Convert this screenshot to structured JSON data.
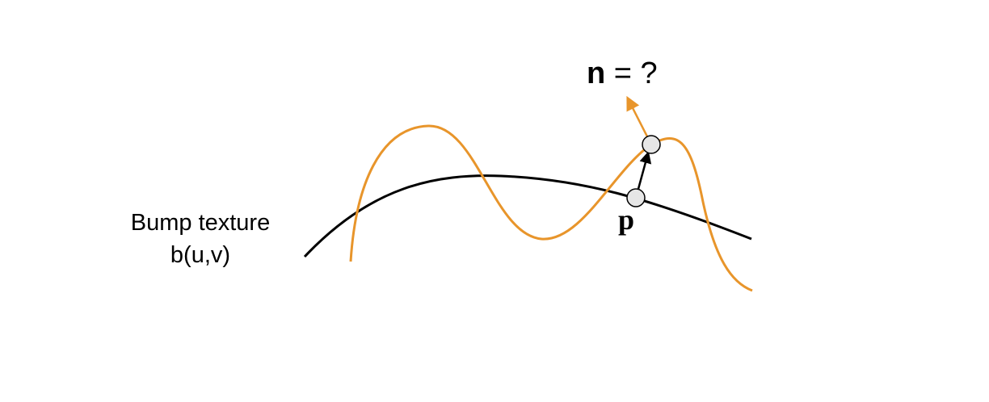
{
  "caption": {
    "line1": "Bump texture",
    "line2": "b(u,v)"
  },
  "normal_label": {
    "symbol": "n",
    "rest": " = ?"
  },
  "point_label": "p",
  "colors": {
    "base_surface": "#000000",
    "bumped_surface": "#E8952B",
    "point_fill": "#E6E6E6",
    "point_stroke": "#000000"
  }
}
